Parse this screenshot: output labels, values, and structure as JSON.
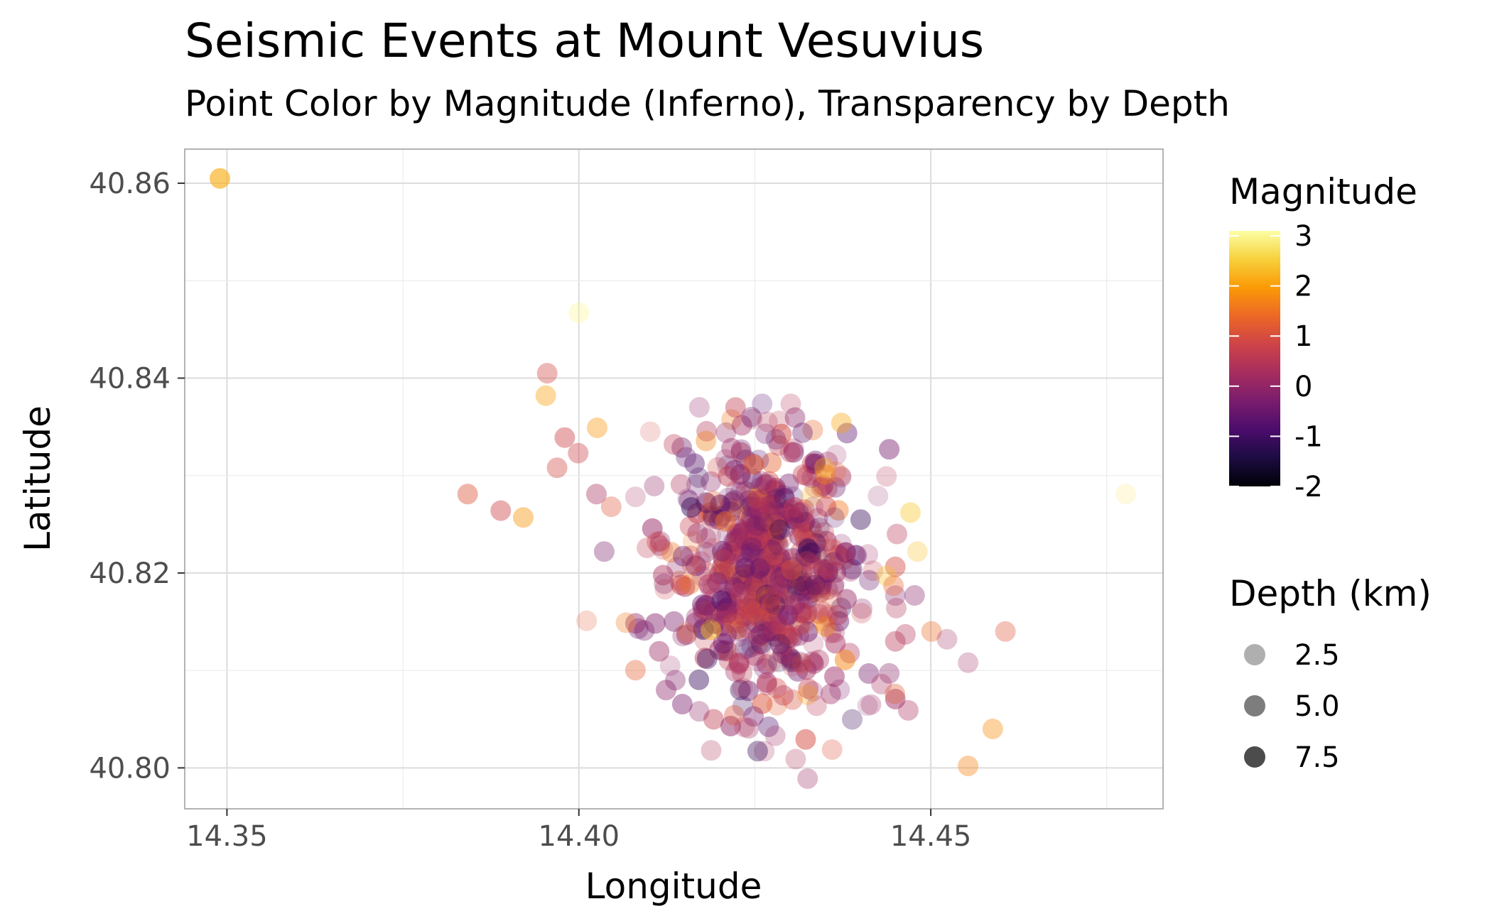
{
  "chart_data": {
    "type": "scatter",
    "title": "Seismic Events at Mount Vesuvius",
    "subtitle": "Point Color by Magnitude (Inferno), Transparency by Depth",
    "xlabel": "Longitude",
    "ylabel": "Latitude",
    "xlim": [
      14.344,
      14.483
    ],
    "ylim": [
      40.7958,
      40.8635
    ],
    "x_ticks": [
      14.35,
      14.4,
      14.45
    ],
    "x_tick_labels": [
      "14.35",
      "14.40",
      "14.45"
    ],
    "y_ticks": [
      40.8,
      40.82,
      40.84,
      40.86
    ],
    "y_tick_labels": [
      "40.80",
      "40.82",
      "40.84",
      "40.86"
    ],
    "grid": true,
    "color_scale": {
      "title": "Magnitude",
      "palette": "inferno",
      "range": [
        -2,
        3.1
      ],
      "breaks": [
        3,
        2,
        1,
        0,
        -1,
        -2
      ],
      "break_labels": [
        "3",
        "2",
        "1",
        "0",
        "-1",
        "-2"
      ]
    },
    "alpha_scale": {
      "title": "Depth (km)",
      "breaks": [
        2.5,
        5.0,
        7.5
      ],
      "break_labels": [
        "2.5",
        "5.0",
        "7.5"
      ]
    },
    "legend_position": "right",
    "outlier_points": [
      {
        "x": 14.349,
        "y": 40.8605,
        "mag": 2.2,
        "depth": 7.0
      },
      {
        "x": 14.4,
        "y": 40.8467,
        "mag": 3.0,
        "depth": 3.0
      },
      {
        "x": 14.3955,
        "y": 40.8405,
        "mag": 0.9,
        "depth": 3.5
      },
      {
        "x": 14.3953,
        "y": 40.8382,
        "mag": 2.0,
        "depth": 3.5
      },
      {
        "x": 14.4026,
        "y": 40.8349,
        "mag": 1.9,
        "depth": 3.5
      },
      {
        "x": 14.398,
        "y": 40.8339,
        "mag": 0.8,
        "depth": 4.0
      },
      {
        "x": 14.3999,
        "y": 40.8323,
        "mag": 0.8,
        "depth": 3.5
      },
      {
        "x": 14.3969,
        "y": 40.8308,
        "mag": 0.9,
        "depth": 3.5
      },
      {
        "x": 14.3842,
        "y": 40.8281,
        "mag": 1.1,
        "depth": 4.0
      },
      {
        "x": 14.3889,
        "y": 40.8264,
        "mag": 0.8,
        "depth": 4.0
      },
      {
        "x": 14.3921,
        "y": 40.8257,
        "mag": 1.9,
        "depth": 4.0
      },
      {
        "x": 14.4025,
        "y": 40.8281,
        "mag": 0.3,
        "depth": 3.5
      },
      {
        "x": 14.4046,
        "y": 40.8268,
        "mag": 1.1,
        "depth": 3.0
      },
      {
        "x": 14.4036,
        "y": 40.8222,
        "mag": -0.3,
        "depth": 3.0
      },
      {
        "x": 14.4011,
        "y": 40.8151,
        "mag": 1.2,
        "depth": 1.5
      },
      {
        "x": 14.4067,
        "y": 40.8149,
        "mag": 1.6,
        "depth": 2.5
      },
      {
        "x": 14.4373,
        "y": 40.8354,
        "mag": 2.1,
        "depth": 3.5
      },
      {
        "x": 14.4336,
        "y": 40.8315,
        "mag": -0.5,
        "depth": 3.5
      },
      {
        "x": 14.4349,
        "y": 40.8308,
        "mag": 2.2,
        "depth": 3.0
      },
      {
        "x": 14.4425,
        "y": 40.8279,
        "mag": 0.0,
        "depth": 1.0
      },
      {
        "x": 14.4471,
        "y": 40.8262,
        "mag": 2.5,
        "depth": 4.0
      },
      {
        "x": 14.4452,
        "y": 40.824,
        "mag": 0.5,
        "depth": 3.0
      },
      {
        "x": 14.4481,
        "y": 40.8222,
        "mag": 2.4,
        "depth": 2.5
      },
      {
        "x": 14.4437,
        "y": 40.8197,
        "mag": 2.4,
        "depth": 3.0
      },
      {
        "x": 14.4447,
        "y": 40.8187,
        "mag": 1.3,
        "depth": 3.0
      },
      {
        "x": 14.4477,
        "y": 40.8177,
        "mag": -0.1,
        "depth": 3.0
      },
      {
        "x": 14.4451,
        "y": 40.8164,
        "mag": 0.4,
        "depth": 2.5
      },
      {
        "x": 14.4501,
        "y": 40.814,
        "mag": 1.4,
        "depth": 3.0
      },
      {
        "x": 14.4523,
        "y": 40.8132,
        "mag": 0.2,
        "depth": 2.0
      },
      {
        "x": 14.4606,
        "y": 40.814,
        "mag": 1.1,
        "depth": 3.0
      },
      {
        "x": 14.4553,
        "y": 40.8108,
        "mag": 0.2,
        "depth": 2.0
      },
      {
        "x": 14.4464,
        "y": 40.8137,
        "mag": 0.4,
        "depth": 3.0
      },
      {
        "x": 14.4441,
        "y": 40.8097,
        "mag": -0.1,
        "depth": 3.0
      },
      {
        "x": 14.443,
        "y": 40.8086,
        "mag": 0.3,
        "depth": 2.5
      },
      {
        "x": 14.4449,
        "y": 40.8076,
        "mag": 1.2,
        "depth": 3.0
      },
      {
        "x": 14.4415,
        "y": 40.8065,
        "mag": 0.1,
        "depth": 2.0
      },
      {
        "x": 14.4468,
        "y": 40.8059,
        "mag": 0.3,
        "depth": 3.0
      },
      {
        "x": 14.4588,
        "y": 40.804,
        "mag": 1.8,
        "depth": 3.5
      },
      {
        "x": 14.4553,
        "y": 40.8002,
        "mag": 1.7,
        "depth": 3.5
      },
      {
        "x": 14.4308,
        "y": 40.8009,
        "mag": 0.4,
        "depth": 2.0
      },
      {
        "x": 14.4325,
        "y": 40.7989,
        "mag": 0.1,
        "depth": 2.5
      },
      {
        "x": 14.4777,
        "y": 40.8281,
        "mag": 2.7,
        "depth": 1.0
      },
      {
        "x": 14.4093,
        "y": 40.8141,
        "mag": -0.3,
        "depth": 3.0
      },
      {
        "x": 14.4137,
        "y": 40.809,
        "mag": -0.2,
        "depth": 3.0
      },
      {
        "x": 14.4171,
        "y": 40.8058,
        "mag": 0.0,
        "depth": 2.5
      },
      {
        "x": 14.4188,
        "y": 40.8018,
        "mag": 0.4,
        "depth": 2.0
      },
      {
        "x": 14.4235,
        "y": 40.8042,
        "mag": 0.4,
        "depth": 2.0
      },
      {
        "x": 14.4279,
        "y": 40.8033,
        "mag": 0.2,
        "depth": 2.0
      },
      {
        "x": 14.4267,
        "y": 40.8085,
        "mag": 0.4,
        "depth": 2.5
      },
      {
        "x": 14.4325,
        "y": 40.8075,
        "mag": 2.0,
        "depth": 2.0
      },
      {
        "x": 14.4135,
        "y": 40.8332,
        "mag": 0.6,
        "depth": 3.0
      },
      {
        "x": 14.4209,
        "y": 40.8344,
        "mag": 0.0,
        "depth": 2.5
      },
      {
        "x": 14.4245,
        "y": 40.836,
        "mag": -0.5,
        "depth": 2.5
      },
      {
        "x": 14.4268,
        "y": 40.8355,
        "mag": 0.5,
        "depth": 2.0
      },
      {
        "x": 14.428,
        "y": 40.8337,
        "mag": -0.5,
        "depth": 2.5
      },
      {
        "x": 14.43,
        "y": 40.8324,
        "mag": 0.5,
        "depth": 3.0
      }
    ],
    "core_cluster": {
      "count": 620,
      "center_x": 14.4265,
      "center_y": 40.8202,
      "sd_x": 0.0071,
      "sd_y": 0.0066,
      "mag_range": [
        -1.1,
        2.5
      ],
      "depth_range": [
        1.0,
        5.0
      ]
    }
  }
}
